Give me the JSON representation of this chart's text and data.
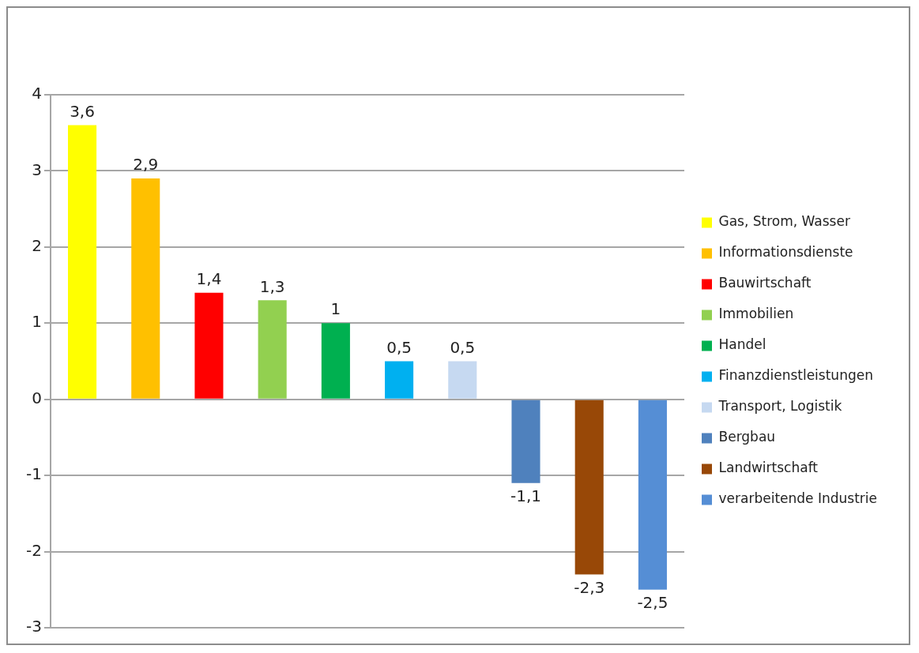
{
  "chart_data": {
    "type": "bar",
    "categories": [
      null,
      null,
      null,
      null,
      null,
      null,
      null,
      null,
      null,
      null
    ],
    "series": [
      {
        "name": "Gas, Strom, Wasser",
        "color": "#ffff00",
        "values": [
          3.6,
          null,
          null,
          null,
          null,
          null,
          null,
          null,
          null,
          null
        ],
        "value_labels": [
          "3,6",
          null,
          null,
          null,
          null,
          null,
          null,
          null,
          null,
          null
        ]
      },
      {
        "name": "Informationsdienste",
        "color": "#ffc000",
        "values": [
          null,
          2.9,
          null,
          null,
          null,
          null,
          null,
          null,
          null,
          null
        ],
        "value_labels": [
          null,
          "2,9",
          null,
          null,
          null,
          null,
          null,
          null,
          null,
          null
        ]
      },
      {
        "name": "Bauwirtschaft",
        "color": "#ff0000",
        "values": [
          null,
          null,
          1.4,
          null,
          null,
          null,
          null,
          null,
          null,
          null
        ],
        "value_labels": [
          null,
          null,
          "1,4",
          null,
          null,
          null,
          null,
          null,
          null,
          null
        ]
      },
      {
        "name": "Immobilien",
        "color": "#92d050",
        "values": [
          null,
          null,
          null,
          1.3,
          null,
          null,
          null,
          null,
          null,
          null
        ],
        "value_labels": [
          null,
          null,
          null,
          "1,3",
          null,
          null,
          null,
          null,
          null,
          null
        ]
      },
      {
        "name": "Handel",
        "color": "#00b050",
        "values": [
          null,
          null,
          null,
          null,
          1,
          null,
          null,
          null,
          null,
          null
        ],
        "value_labels": [
          null,
          null,
          null,
          null,
          "1",
          null,
          null,
          null,
          null,
          null
        ]
      },
      {
        "name": "Finanzdienstleistungen",
        "color": "#00b0f0",
        "values": [
          null,
          null,
          null,
          null,
          null,
          0.5,
          null,
          null,
          null,
          null
        ],
        "value_labels": [
          null,
          null,
          null,
          null,
          null,
          "0,5",
          null,
          null,
          null,
          null
        ]
      },
      {
        "name": "Transport, Logistik",
        "color": "#c6d9f1",
        "values": [
          null,
          null,
          null,
          null,
          null,
          null,
          0.5,
          null,
          null,
          null
        ],
        "value_labels": [
          null,
          null,
          null,
          null,
          null,
          null,
          "0,5",
          null,
          null,
          null
        ]
      },
      {
        "name": "Bergbau",
        "color": "#4f81bd",
        "values": [
          null,
          null,
          null,
          null,
          null,
          null,
          null,
          -1.1,
          null,
          null
        ],
        "value_labels": [
          null,
          null,
          null,
          null,
          null,
          null,
          null,
          "-1,1",
          null,
          null
        ]
      },
      {
        "name": "Landwirtschaft",
        "color": "#984807",
        "values": [
          null,
          null,
          null,
          null,
          null,
          null,
          null,
          null,
          -2.3,
          null
        ],
        "value_labels": [
          null,
          null,
          null,
          null,
          null,
          null,
          null,
          null,
          "-2,3",
          null
        ]
      },
      {
        "name": "verarbeitende Industrie",
        "color": "#558ed5",
        "values": [
          null,
          null,
          null,
          null,
          null,
          null,
          null,
          null,
          null,
          -2.5
        ],
        "value_labels": [
          null,
          null,
          null,
          null,
          null,
          null,
          null,
          null,
          null,
          "-2,5"
        ]
      }
    ],
    "ylim": [
      -3,
      4
    ],
    "yticks": [
      -3,
      -2,
      -1,
      0,
      1,
      2,
      3,
      4
    ],
    "grid": "y",
    "legend": "right",
    "tick_labels": "y"
  }
}
